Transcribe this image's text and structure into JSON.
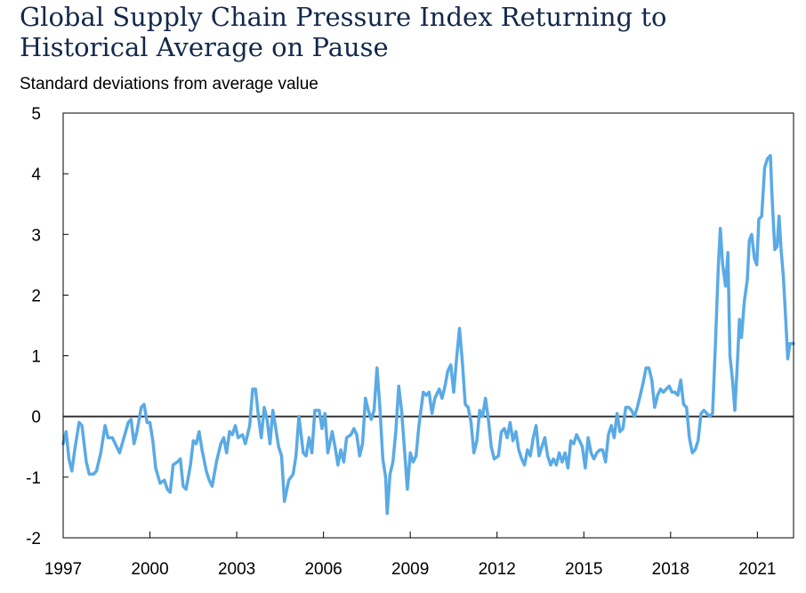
{
  "page": {
    "title": "Global Supply Chain Pressure Index Returning to Historical Average on Pause",
    "subtitle": "Standard deviations from average value"
  },
  "chart_data": {
    "type": "line",
    "title": "Global Supply Chain Pressure Index Returning to Historical Average on Pause",
    "ylabel": "Standard deviations from average value",
    "xlabel": "",
    "xlim": [
      1997.0,
      2022.25
    ],
    "ylim": [
      -2,
      5
    ],
    "x_ticks": [
      1997,
      2000,
      2003,
      2006,
      2009,
      2012,
      2015,
      2018,
      2021
    ],
    "y_ticks": [
      5,
      4,
      3,
      2,
      1,
      0,
      -1,
      -2
    ],
    "x_tick_labels": [
      "1997",
      "2000",
      "2003",
      "2006",
      "2009",
      "2012",
      "2015",
      "2018",
      "2021"
    ],
    "y_tick_labels": [
      "5",
      "4",
      "3",
      "2",
      "1",
      "0",
      "-1",
      "-2"
    ],
    "zero_line": true,
    "grid": false,
    "colors": {
      "line": "#5aaae5",
      "zero_line": "#333333",
      "frame": "#000000",
      "title": "#13294b"
    },
    "series": [
      {
        "points": [
          [
            1997.0,
            -0.45
          ],
          [
            1997.1,
            -0.25
          ],
          [
            1997.2,
            -0.7
          ],
          [
            1997.3,
            -0.9
          ],
          [
            1997.4,
            -0.55
          ],
          [
            1997.55,
            -0.1
          ],
          [
            1997.65,
            -0.15
          ],
          [
            1997.8,
            -0.75
          ],
          [
            1997.9,
            -0.95
          ],
          [
            1998.05,
            -0.95
          ],
          [
            1998.15,
            -0.9
          ],
          [
            1998.3,
            -0.6
          ],
          [
            1998.45,
            -0.15
          ],
          [
            1998.55,
            -0.35
          ],
          [
            1998.7,
            -0.35
          ],
          [
            1998.85,
            -0.5
          ],
          [
            1998.95,
            -0.6
          ],
          [
            1999.1,
            -0.35
          ],
          [
            1999.25,
            -0.1
          ],
          [
            1999.35,
            -0.05
          ],
          [
            1999.45,
            -0.45
          ],
          [
            1999.55,
            -0.25
          ],
          [
            1999.7,
            0.15
          ],
          [
            1999.8,
            0.2
          ],
          [
            1999.9,
            -0.1
          ],
          [
            2000.0,
            -0.1
          ],
          [
            2000.1,
            -0.4
          ],
          [
            2000.2,
            -0.85
          ],
          [
            2000.35,
            -1.1
          ],
          [
            2000.5,
            -1.05
          ],
          [
            2000.6,
            -1.2
          ],
          [
            2000.7,
            -1.25
          ],
          [
            2000.8,
            -0.8
          ],
          [
            2000.95,
            -0.75
          ],
          [
            2001.05,
            -0.7
          ],
          [
            2001.15,
            -1.15
          ],
          [
            2001.25,
            -1.2
          ],
          [
            2001.4,
            -0.8
          ],
          [
            2001.5,
            -0.4
          ],
          [
            2001.6,
            -0.45
          ],
          [
            2001.7,
            -0.25
          ],
          [
            2001.8,
            -0.55
          ],
          [
            2001.95,
            -0.9
          ],
          [
            2002.05,
            -1.05
          ],
          [
            2002.15,
            -1.15
          ],
          [
            2002.3,
            -0.75
          ],
          [
            2002.45,
            -0.45
          ],
          [
            2002.55,
            -0.35
          ],
          [
            2002.65,
            -0.6
          ],
          [
            2002.75,
            -0.25
          ],
          [
            2002.85,
            -0.3
          ],
          [
            2002.95,
            -0.15
          ],
          [
            2003.05,
            -0.35
          ],
          [
            2003.2,
            -0.3
          ],
          [
            2003.3,
            -0.45
          ],
          [
            2003.45,
            -0.15
          ],
          [
            2003.55,
            0.45
          ],
          [
            2003.65,
            0.45
          ],
          [
            2003.75,
            0.0
          ],
          [
            2003.85,
            -0.35
          ],
          [
            2003.95,
            0.15
          ],
          [
            2004.05,
            -0.05
          ],
          [
            2004.15,
            -0.45
          ],
          [
            2004.25,
            0.1
          ],
          [
            2004.35,
            -0.2
          ],
          [
            2004.45,
            -0.5
          ],
          [
            2004.55,
            -0.65
          ],
          [
            2004.65,
            -1.4
          ],
          [
            2004.8,
            -1.05
          ],
          [
            2004.95,
            -0.95
          ],
          [
            2005.05,
            -0.65
          ],
          [
            2005.15,
            0.0
          ],
          [
            2005.3,
            -0.6
          ],
          [
            2005.4,
            -0.65
          ],
          [
            2005.5,
            -0.35
          ],
          [
            2005.6,
            -0.6
          ],
          [
            2005.7,
            0.1
          ],
          [
            2005.85,
            0.1
          ],
          [
            2005.95,
            -0.2
          ],
          [
            2006.05,
            0.05
          ],
          [
            2006.15,
            -0.6
          ],
          [
            2006.3,
            -0.25
          ],
          [
            2006.4,
            -0.5
          ],
          [
            2006.5,
            -0.8
          ],
          [
            2006.6,
            -0.55
          ],
          [
            2006.7,
            -0.75
          ],
          [
            2006.8,
            -0.35
          ],
          [
            2006.95,
            -0.3
          ],
          [
            2007.05,
            -0.2
          ],
          [
            2007.15,
            -0.3
          ],
          [
            2007.25,
            -0.65
          ],
          [
            2007.35,
            -0.45
          ],
          [
            2007.45,
            0.3
          ],
          [
            2007.55,
            0.1
          ],
          [
            2007.65,
            -0.05
          ],
          [
            2007.75,
            0.1
          ],
          [
            2007.85,
            0.8
          ],
          [
            2007.95,
            0.15
          ],
          [
            2008.05,
            -0.7
          ],
          [
            2008.15,
            -1.0
          ],
          [
            2008.2,
            -1.6
          ],
          [
            2008.3,
            -0.95
          ],
          [
            2008.4,
            -0.75
          ],
          [
            2008.5,
            -0.25
          ],
          [
            2008.6,
            0.5
          ],
          [
            2008.7,
            0.1
          ],
          [
            2008.8,
            -0.55
          ],
          [
            2008.9,
            -1.2
          ],
          [
            2009.0,
            -0.6
          ],
          [
            2009.1,
            -0.75
          ],
          [
            2009.2,
            -0.65
          ],
          [
            2009.3,
            -0.15
          ],
          [
            2009.45,
            0.4
          ],
          [
            2009.55,
            0.35
          ],
          [
            2009.65,
            0.4
          ],
          [
            2009.75,
            0.05
          ],
          [
            2009.85,
            0.3
          ],
          [
            2010.0,
            0.45
          ],
          [
            2010.1,
            0.3
          ],
          [
            2010.2,
            0.5
          ],
          [
            2010.3,
            0.75
          ],
          [
            2010.4,
            0.85
          ],
          [
            2010.5,
            0.4
          ],
          [
            2010.6,
            0.95
          ],
          [
            2010.7,
            1.45
          ],
          [
            2010.8,
            0.9
          ],
          [
            2010.9,
            0.2
          ],
          [
            2011.0,
            0.15
          ],
          [
            2011.1,
            -0.1
          ],
          [
            2011.2,
            -0.6
          ],
          [
            2011.3,
            -0.4
          ],
          [
            2011.4,
            0.1
          ],
          [
            2011.5,
            0.0
          ],
          [
            2011.6,
            0.3
          ],
          [
            2011.7,
            -0.05
          ],
          [
            2011.8,
            -0.5
          ],
          [
            2011.9,
            -0.7
          ],
          [
            2012.05,
            -0.65
          ],
          [
            2012.15,
            -0.25
          ],
          [
            2012.25,
            -0.2
          ],
          [
            2012.35,
            -0.35
          ],
          [
            2012.45,
            -0.1
          ],
          [
            2012.55,
            -0.4
          ],
          [
            2012.65,
            -0.25
          ],
          [
            2012.75,
            -0.55
          ],
          [
            2012.85,
            -0.7
          ],
          [
            2012.95,
            -0.8
          ],
          [
            2013.05,
            -0.55
          ],
          [
            2013.15,
            -0.65
          ],
          [
            2013.25,
            -0.35
          ],
          [
            2013.35,
            -0.15
          ],
          [
            2013.45,
            -0.65
          ],
          [
            2013.55,
            -0.5
          ],
          [
            2013.65,
            -0.35
          ],
          [
            2013.75,
            -0.65
          ],
          [
            2013.85,
            -0.8
          ],
          [
            2013.95,
            -0.7
          ],
          [
            2014.05,
            -0.8
          ],
          [
            2014.15,
            -0.6
          ],
          [
            2014.25,
            -0.75
          ],
          [
            2014.35,
            -0.6
          ],
          [
            2014.45,
            -0.85
          ],
          [
            2014.55,
            -0.4
          ],
          [
            2014.65,
            -0.45
          ],
          [
            2014.75,
            -0.3
          ],
          [
            2014.85,
            -0.4
          ],
          [
            2014.95,
            -0.5
          ],
          [
            2015.05,
            -0.85
          ],
          [
            2015.15,
            -0.35
          ],
          [
            2015.25,
            -0.6
          ],
          [
            2015.35,
            -0.7
          ],
          [
            2015.45,
            -0.6
          ],
          [
            2015.55,
            -0.55
          ],
          [
            2015.65,
            -0.55
          ],
          [
            2015.75,
            -0.75
          ],
          [
            2015.85,
            -0.3
          ],
          [
            2015.95,
            -0.15
          ],
          [
            2016.05,
            -0.35
          ],
          [
            2016.15,
            0.05
          ],
          [
            2016.25,
            -0.25
          ],
          [
            2016.35,
            -0.2
          ],
          [
            2016.45,
            0.15
          ],
          [
            2016.55,
            0.15
          ],
          [
            2016.65,
            0.1
          ],
          [
            2016.75,
            0.0
          ],
          [
            2016.85,
            0.15
          ],
          [
            2016.95,
            0.35
          ],
          [
            2017.05,
            0.55
          ],
          [
            2017.15,
            0.8
          ],
          [
            2017.25,
            0.8
          ],
          [
            2017.35,
            0.6
          ],
          [
            2017.45,
            0.15
          ],
          [
            2017.55,
            0.35
          ],
          [
            2017.65,
            0.45
          ],
          [
            2017.75,
            0.4
          ],
          [
            2017.85,
            0.45
          ],
          [
            2017.95,
            0.5
          ],
          [
            2018.05,
            0.4
          ],
          [
            2018.15,
            0.4
          ],
          [
            2018.25,
            0.35
          ],
          [
            2018.35,
            0.6
          ],
          [
            2018.45,
            0.2
          ],
          [
            2018.55,
            0.15
          ],
          [
            2018.65,
            -0.35
          ],
          [
            2018.75,
            -0.6
          ],
          [
            2018.85,
            -0.55
          ],
          [
            2018.95,
            -0.4
          ],
          [
            2019.05,
            0.05
          ],
          [
            2019.15,
            0.1
          ],
          [
            2019.25,
            0.05
          ],
          [
            2019.35,
            0.0
          ],
          [
            2019.45,
            0.05
          ],
          [
            2019.55,
            1.2
          ],
          [
            2019.65,
            2.5
          ],
          [
            2019.72,
            3.1
          ],
          [
            2019.8,
            2.5
          ],
          [
            2019.9,
            2.15
          ],
          [
            2019.98,
            2.7
          ],
          [
            2020.05,
            1.0
          ],
          [
            2020.15,
            0.55
          ],
          [
            2020.22,
            0.1
          ],
          [
            2020.3,
            0.8
          ],
          [
            2020.38,
            1.6
          ],
          [
            2020.45,
            1.3
          ],
          [
            2020.55,
            1.9
          ],
          [
            2020.65,
            2.25
          ],
          [
            2020.72,
            2.9
          ],
          [
            2020.8,
            3.0
          ],
          [
            2020.9,
            2.6
          ],
          [
            2020.98,
            2.5
          ],
          [
            2021.05,
            3.25
          ],
          [
            2021.15,
            3.3
          ],
          [
            2021.25,
            4.1
          ],
          [
            2021.35,
            4.25
          ],
          [
            2021.45,
            4.3
          ],
          [
            2021.5,
            3.7
          ],
          [
            2021.6,
            2.75
          ],
          [
            2021.68,
            2.8
          ],
          [
            2021.75,
            3.3
          ],
          [
            2021.82,
            2.75
          ],
          [
            2021.9,
            2.3
          ],
          [
            2021.98,
            1.6
          ],
          [
            2022.05,
            0.95
          ],
          [
            2022.12,
            1.2
          ],
          [
            2022.2,
            1.2
          ],
          [
            2022.25,
            1.2
          ]
        ]
      }
    ]
  }
}
